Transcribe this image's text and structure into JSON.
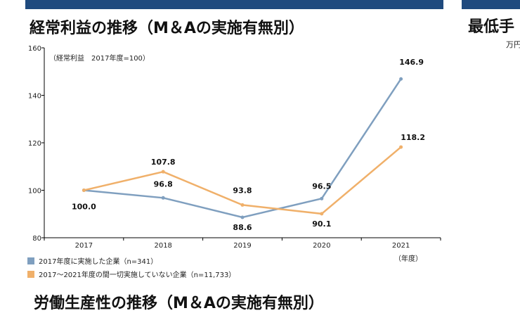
{
  "page": {
    "title": "経常利益の推移（M＆Aの実施有無別）",
    "next_title": "労働生産性の推移（M＆Aの実施有無別）",
    "right_title": "最低手",
    "right_sub": "万円"
  },
  "chart_data": {
    "type": "line",
    "title": "経常利益の推移（M＆Aの実施有無別）",
    "note": "（経常利益　2017年度=100）",
    "xlabel": "（年度）",
    "categories": [
      "2017",
      "2018",
      "2019",
      "2020",
      "2021"
    ],
    "ylim": [
      80,
      160
    ],
    "yticks": [
      80,
      100,
      120,
      140,
      160
    ],
    "grid": false,
    "legend_position": "bottom-left",
    "series": [
      {
        "name": "2017年度に実施した企業（n=341）",
        "color": "#7f9fbf",
        "values": [
          100.0,
          96.8,
          88.6,
          96.5,
          146.9
        ],
        "labels": [
          "",
          "96.8",
          "88.6",
          "96.5",
          "146.9"
        ]
      },
      {
        "name": "2017～2021年度の間一切実施していない企業（n=11,733）",
        "color": "#f0b06a",
        "values": [
          100.0,
          107.8,
          93.8,
          90.1,
          118.2
        ],
        "labels": [
          "100.0",
          "107.8",
          "93.8",
          "90.1",
          "118.2"
        ]
      }
    ]
  }
}
